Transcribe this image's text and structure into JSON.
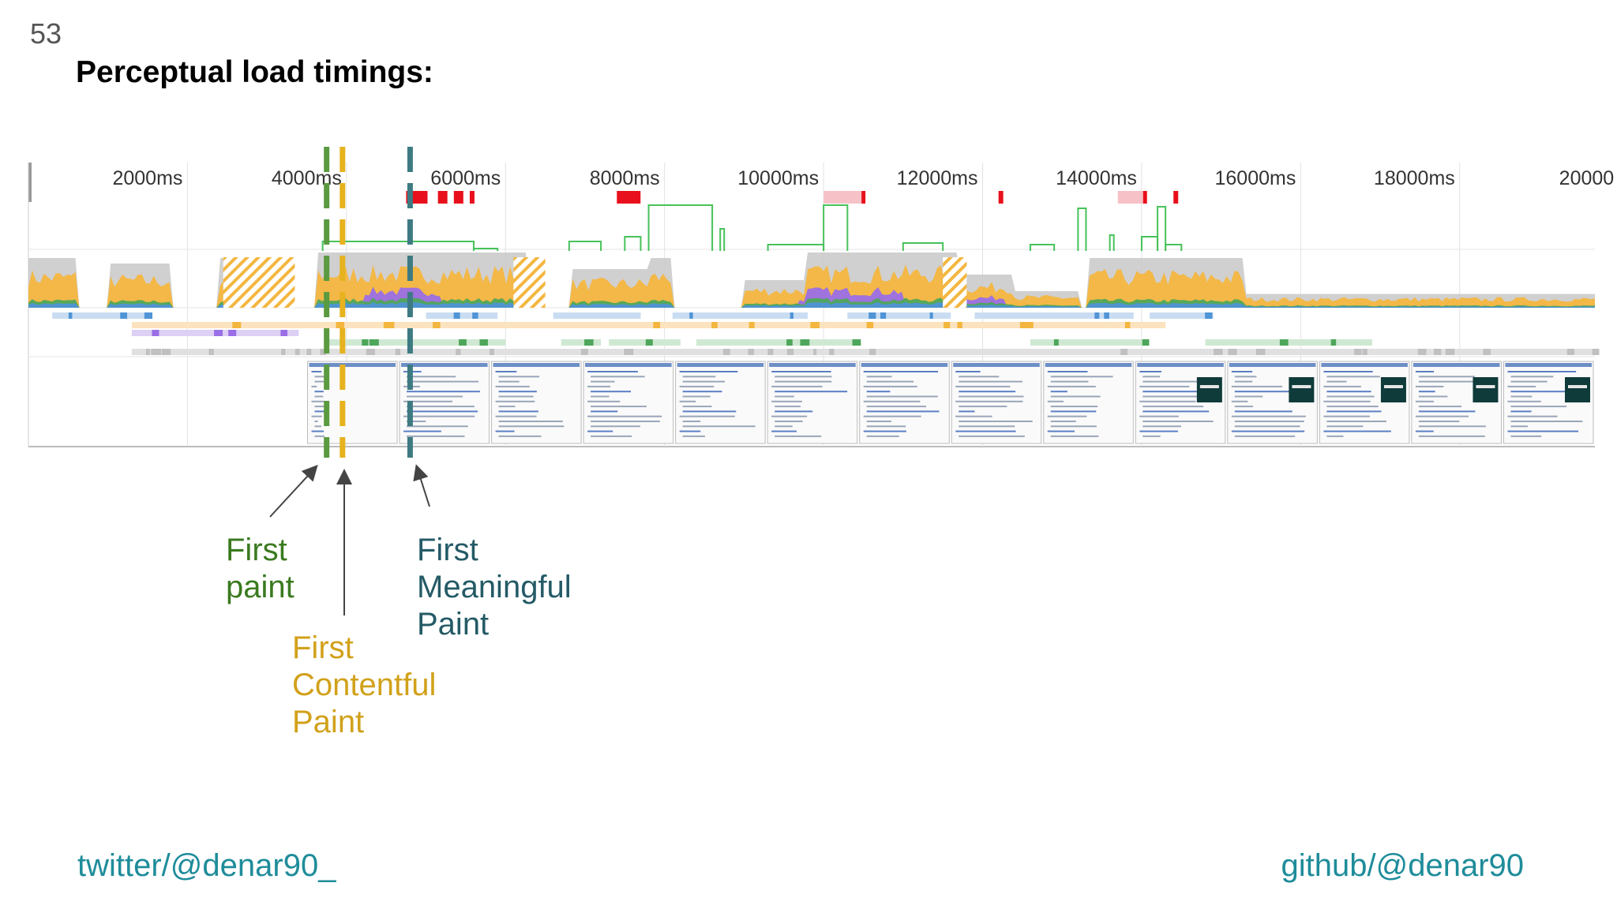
{
  "slide": {
    "number": "53",
    "title": "Perceptual load timings:"
  },
  "timeline": {
    "tick_labels": [
      "2000ms",
      "4000ms",
      "6000ms",
      "8000ms",
      "10000ms",
      "12000ms",
      "14000ms",
      "16000ms",
      "18000ms",
      "20000"
    ],
    "tick_values_ms": [
      2000,
      4000,
      6000,
      8000,
      10000,
      12000,
      14000,
      16000,
      18000,
      20000
    ],
    "range_ms": [
      0,
      19700
    ],
    "colors": {
      "scripting": "#f4b63f",
      "rendering": "#9a6ee6",
      "painting": "#4ea65a",
      "loading": "#4f94d6",
      "idle": "#c8c8c8",
      "fps": "#47c25a",
      "dropped_frames": "#e8101c",
      "first_paint": "#5a9a40",
      "first_contentful_paint": "#e6b21e",
      "first_meaningful_paint": "#3e7a82"
    },
    "markers": [
      {
        "id": "first-paint",
        "time_ms": 3750
      },
      {
        "id": "first-contentful-paint",
        "time_ms": 3950
      },
      {
        "id": "first-meaningful-paint",
        "time_ms": 4800
      }
    ],
    "filmstrip_start_ms": 3500,
    "filmstrip_frames": 14
  },
  "annotations": {
    "first_paint": {
      "line1": "First",
      "line2": "paint",
      "color": "#3a7a1f"
    },
    "first_contentful_paint": {
      "line1": "First",
      "line2": "Contentful",
      "line3": "Paint",
      "color": "#d1a11a"
    },
    "first_meaningful_paint": {
      "line1": "First",
      "line2": "Meaningful",
      "line3": "Paint",
      "color": "#245a66"
    }
  },
  "footer": {
    "twitter": "twitter/@denar90_",
    "github": "github/@denar90"
  }
}
